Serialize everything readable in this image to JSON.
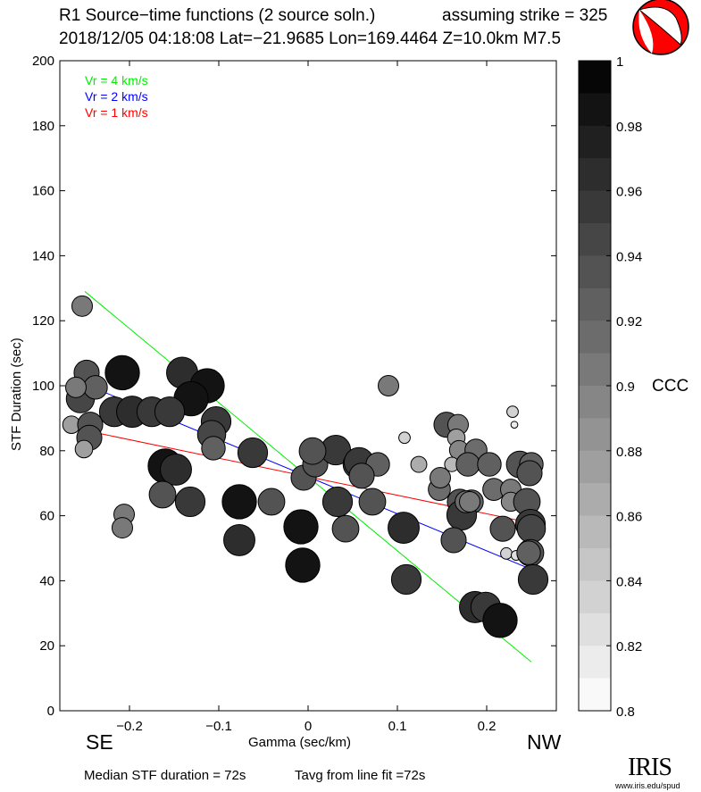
{
  "header": {
    "title": "R1 Source−time functions (2 source soln.)",
    "strike": "assuming strike = 325",
    "event": "2018/12/05 04:18:08  Lat=−21.9685 Lon=169.4464  Z=10.0km  M7.5"
  },
  "footer": {
    "median": "Median STF duration = 72s",
    "tavg": "Tavg from line fit =72s",
    "logo_text": "IRIS",
    "logo_url": "www.iris.edu/spud",
    "left_dir": "SE",
    "right_dir": "NW"
  },
  "chart_data": {
    "type": "scatter",
    "xlabel": "Gamma (sec/km)",
    "ylabel": "STF Duration (sec)",
    "xlim": [
      -0.278,
      0.278
    ],
    "ylim": [
      0,
      200
    ],
    "xticks": [
      -0.2,
      -0.1,
      0,
      0.1,
      0.2
    ],
    "xtick_labels": [
      "−0.2",
      "−0.1",
      "0",
      "0.1",
      "0.2"
    ],
    "yticks": [
      0,
      20,
      40,
      60,
      80,
      100,
      120,
      140,
      160,
      180,
      200
    ],
    "ytick_labels": [
      "0",
      "20",
      "40",
      "60",
      "80",
      "100",
      "120",
      "140",
      "160",
      "180",
      "200"
    ],
    "legend": [
      {
        "label": "Vr = 4 km/s",
        "color": "#00ee00",
        "slope": -228
      },
      {
        "label": "Vr = 2 km/s",
        "color": "#0000ff",
        "slope": -114
      },
      {
        "label": "Vr = 1 km/s",
        "color": "#ff0000",
        "slope": -57
      }
    ],
    "legend_placement": "top-left",
    "line_intercept": 72,
    "line_xrange": [
      -0.25,
      0.25
    ],
    "colorbar": {
      "label": "CCC",
      "range": [
        0.8,
        1
      ],
      "ticks": [
        "1",
        "0.98",
        "0.96",
        "0.94",
        "0.92",
        "0.9",
        "0.88",
        "0.86",
        "0.84",
        "0.82",
        "0.8"
      ]
    },
    "points": [
      [
        -0.253,
        124.5,
        0.9
      ],
      [
        -0.248,
        104,
        0.93
      ],
      [
        -0.208,
        104,
        0.99
      ],
      [
        -0.141,
        104,
        0.97
      ],
      [
        -0.113,
        100,
        0.99
      ],
      [
        -0.131,
        96,
        0.99
      ],
      [
        -0.255,
        96,
        0.95
      ],
      [
        -0.238,
        99.5,
        0.92
      ],
      [
        -0.26,
        99.5,
        0.9
      ],
      [
        -0.265,
        88,
        0.88
      ],
      [
        -0.244,
        88,
        0.93
      ],
      [
        -0.245,
        84,
        0.93
      ],
      [
        -0.251,
        80.5,
        0.88
      ],
      [
        -0.217,
        92,
        0.96
      ],
      [
        -0.197,
        92,
        0.97
      ],
      [
        -0.175,
        92,
        0.96
      ],
      [
        -0.155,
        92,
        0.96
      ],
      [
        -0.103,
        89,
        0.96
      ],
      [
        -0.108,
        85,
        0.95
      ],
      [
        -0.106,
        80.8,
        0.92
      ],
      [
        -0.062,
        79.4,
        0.96
      ],
      [
        -0.16,
        75.3,
        0.99
      ],
      [
        -0.148,
        74.2,
        0.97
      ],
      [
        -0.163,
        66.5,
        0.94
      ],
      [
        -0.132,
        64.3,
        0.96
      ],
      [
        -0.077,
        64.3,
        0.99
      ],
      [
        -0.041,
        64.3,
        0.94
      ],
      [
        -0.077,
        52.5,
        0.97
      ],
      [
        -0.206,
        60.4,
        0.9
      ],
      [
        -0.208,
        56.3,
        0.9
      ],
      [
        -0.008,
        56.6,
        0.99
      ],
      [
        -0.006,
        44.8,
        0.99
      ],
      [
        -0.005,
        71.7,
        0.93
      ],
      [
        0.008,
        75.8,
        0.93
      ],
      [
        0.031,
        80.2,
        0.96
      ],
      [
        0.005,
        79.9,
        0.94
      ],
      [
        0.055,
        75.8,
        0.95
      ],
      [
        0.057,
        76.4,
        0.96
      ],
      [
        0.078,
        75.8,
        0.92
      ],
      [
        0.06,
        72.3,
        0.93
      ],
      [
        0.033,
        64.3,
        0.96
      ],
      [
        0.072,
        64.3,
        0.94
      ],
      [
        0.042,
        56.0,
        0.94
      ],
      [
        0.107,
        56.3,
        0.97
      ],
      [
        0.11,
        40.4,
        0.96
      ],
      [
        0.09,
        100,
        0.9
      ],
      [
        0.108,
        84,
        0.84
      ],
      [
        0.124,
        75.8,
        0.87
      ],
      [
        0.155,
        88,
        0.93
      ],
      [
        0.168,
        88,
        0.9
      ],
      [
        0.166,
        84,
        0.88
      ],
      [
        0.169,
        80.2,
        0.89
      ],
      [
        0.161,
        75.8,
        0.86
      ],
      [
        0.147,
        68.1,
        0.91
      ],
      [
        0.148,
        71.7,
        0.9
      ],
      [
        0.183,
        64.3,
        0.92
      ],
      [
        0.17,
        64.3,
        0.93
      ],
      [
        0.172,
        60.2,
        0.96
      ],
      [
        0.163,
        52.5,
        0.93
      ],
      [
        0.188,
        80.2,
        0.91
      ],
      [
        0.179,
        75.8,
        0.92
      ],
      [
        0.177,
        64.3,
        0.91
      ],
      [
        0.181,
        64.3,
        0.9
      ],
      [
        0.187,
        31.9,
        0.97
      ],
      [
        0.199,
        31.9,
        0.96
      ],
      [
        0.215,
        27.8,
        0.99
      ],
      [
        0.203,
        75.8,
        0.92
      ],
      [
        0.208,
        68.1,
        0.91
      ],
      [
        0.218,
        56.0,
        0.93
      ],
      [
        0.229,
        92.0,
        0.84
      ],
      [
        0.231,
        88,
        0.81
      ],
      [
        0.227,
        68.1,
        0.9
      ],
      [
        0.227,
        64.3,
        0.89
      ],
      [
        0.222,
        48.4,
        0.84
      ],
      [
        0.233,
        47.8,
        0.83
      ],
      [
        0.237,
        75.8,
        0.94
      ],
      [
        0.25,
        75.8,
        0.92
      ],
      [
        0.248,
        73.1,
        0.93
      ],
      [
        0.245,
        64.3,
        0.94
      ],
      [
        0.249,
        57.4,
        0.96
      ],
      [
        0.25,
        56.0,
        0.95
      ],
      [
        0.249,
        48.6,
        0.94
      ],
      [
        0.247,
        48.6,
        0.92
      ],
      [
        0.252,
        40.4,
        0.96
      ]
    ]
  }
}
